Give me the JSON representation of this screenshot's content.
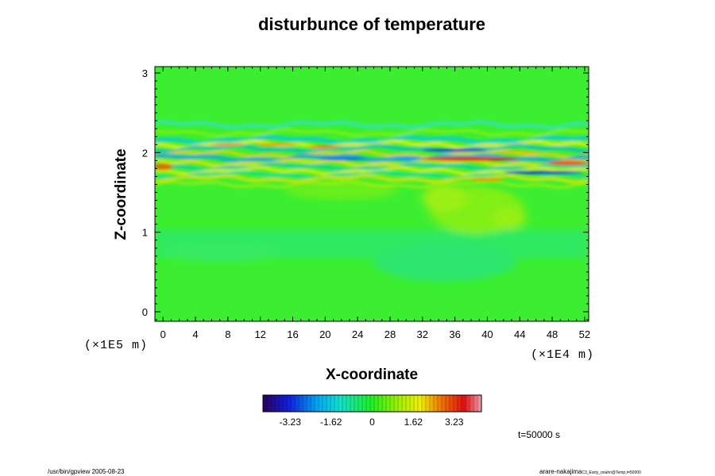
{
  "chart_data": {
    "type": "heatmap",
    "title": "disturbunce of temperature",
    "xlabel": "X-coordinate",
    "ylabel": "Z-coordinate",
    "x_scale_label": "(×1E4 m)",
    "y_scale_label": "(×1E5 m)",
    "xlim": [
      -1,
      52.5
    ],
    "ylim": [
      -0.12,
      3.08
    ],
    "x_ticks": [
      0,
      4,
      8,
      12,
      16,
      20,
      24,
      28,
      32,
      36,
      40,
      44,
      48,
      52
    ],
    "y_ticks": [
      0,
      1,
      2,
      3
    ],
    "colorbar": {
      "range": [
        -4.3,
        4.3
      ],
      "ticks": [
        -3.23,
        -1.62,
        0,
        1.62,
        3.23
      ],
      "tick_labels": [
        "-3.23",
        "-1.62",
        "0",
        "1.62",
        "3.23"
      ]
    },
    "grid": false,
    "time_label": "t=50000 s"
  },
  "footer": {
    "left": "/usr/bin/gpview 2005-08-23",
    "right_main": "arare-nakajima",
    "right_sub": "C3_Earty_onahn@Temp,t=50000"
  }
}
